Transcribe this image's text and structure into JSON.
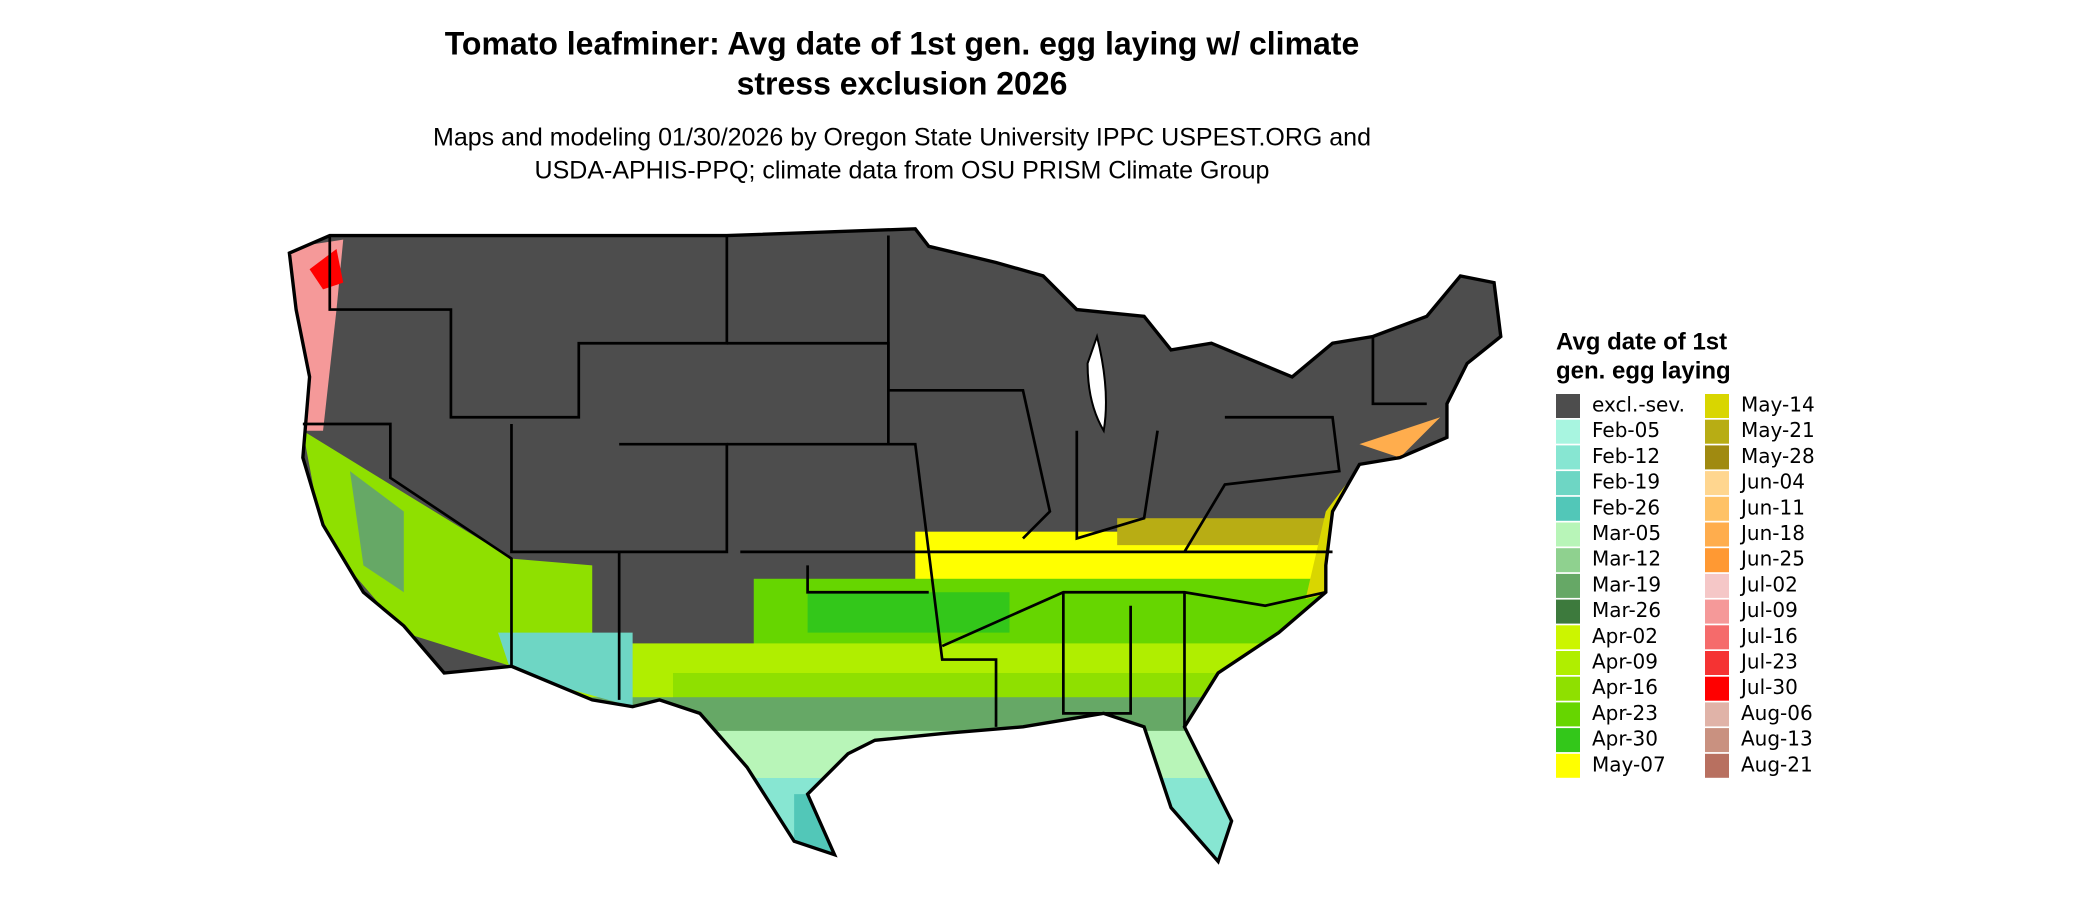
{
  "title": [
    "Tomato leafminer: Avg date of 1st gen. egg laying w/ climate",
    "stress exclusion 2026"
  ],
  "subtitle": [
    "Maps and modeling 01/30/2026 by Oregon State University IPPC USPEST.ORG and",
    "USDA-APHIS-PPQ; climate data from OSU PRISM Climate Group"
  ],
  "legend": {
    "title": [
      "Avg date of 1st",
      "gen. egg laying"
    ],
    "items": [
      {
        "label": "excl.-sev.",
        "color": "#4d4d4d"
      },
      {
        "label": "Feb-05",
        "color": "#a8f5e0"
      },
      {
        "label": "Feb-12",
        "color": "#87e6d2"
      },
      {
        "label": "Feb-19",
        "color": "#6ed6c4"
      },
      {
        "label": "Feb-26",
        "color": "#52c7b8"
      },
      {
        "label": "Mar-05",
        "color": "#b8f5b8"
      },
      {
        "label": "Mar-12",
        "color": "#8fd18f"
      },
      {
        "label": "Mar-19",
        "color": "#66a866"
      },
      {
        "label": "Mar-26",
        "color": "#3d7a3d"
      },
      {
        "label": "Apr-02",
        "color": "#ccf500"
      },
      {
        "label": "Apr-09",
        "color": "#b0ee00"
      },
      {
        "label": "Apr-16",
        "color": "#8fe000"
      },
      {
        "label": "Apr-23",
        "color": "#66d600"
      },
      {
        "label": "Apr-30",
        "color": "#33c71a"
      },
      {
        "label": "May-07",
        "color": "#ffff00"
      },
      {
        "label": "May-14",
        "color": "#d9d600"
      },
      {
        "label": "May-21",
        "color": "#b8ad14"
      },
      {
        "label": "May-28",
        "color": "#a08a10"
      },
      {
        "label": "Jun-04",
        "color": "#ffd68f"
      },
      {
        "label": "Jun-11",
        "color": "#ffc266"
      },
      {
        "label": "Jun-18",
        "color": "#ffad4d"
      },
      {
        "label": "Jun-25",
        "color": "#ff9933"
      },
      {
        "label": "Jul-02",
        "color": "#f5c7c7"
      },
      {
        "label": "Jul-09",
        "color": "#f59999"
      },
      {
        "label": "Jul-16",
        "color": "#f56b6b"
      },
      {
        "label": "Jul-23",
        "color": "#f53333"
      },
      {
        "label": "Jul-30",
        "color": "#ff0000"
      },
      {
        "label": "Aug-06",
        "color": "#e0b3a8"
      },
      {
        "label": "Aug-13",
        "color": "#c99180"
      },
      {
        "label": "Aug-21",
        "color": "#b87060"
      }
    ]
  }
}
